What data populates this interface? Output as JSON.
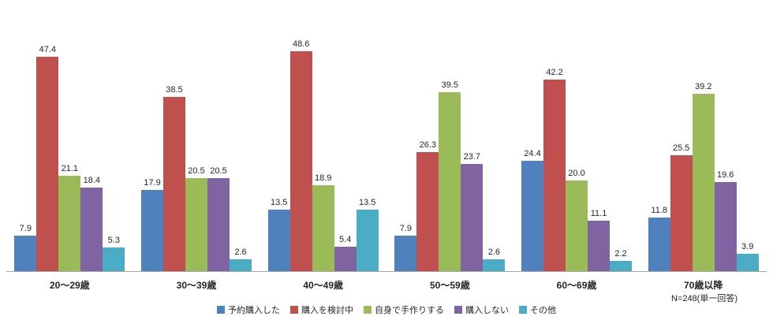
{
  "chart_data": {
    "type": "bar",
    "title": "",
    "xlabel": "",
    "ylabel": "",
    "ylim": [
      0,
      60
    ],
    "grid": false,
    "legend_position": "bottom",
    "note": "N=248(単一回答)",
    "categories": [
      "20〜29歳",
      "30〜39歳",
      "40〜49歳",
      "50〜59歳",
      "60〜69歳",
      "70歳以降"
    ],
    "series": [
      {
        "name": "予約購入した",
        "color": "#4F81BD",
        "values": [
          7.9,
          17.9,
          13.5,
          7.9,
          24.4,
          11.8
        ]
      },
      {
        "name": "購入を検討中",
        "color": "#C0504D",
        "values": [
          47.4,
          38.5,
          48.6,
          26.3,
          42.2,
          25.5
        ]
      },
      {
        "name": "自身で手作りする",
        "color": "#9BBB59",
        "values": [
          21.1,
          20.5,
          18.9,
          39.5,
          20.0,
          39.2
        ]
      },
      {
        "name": "購入しない",
        "color": "#8064A2",
        "values": [
          18.4,
          20.5,
          5.4,
          23.7,
          11.1,
          19.6
        ]
      },
      {
        "name": "その他",
        "color": "#4BACC6",
        "values": [
          5.3,
          2.6,
          13.5,
          2.6,
          2.2,
          3.9
        ]
      }
    ]
  }
}
